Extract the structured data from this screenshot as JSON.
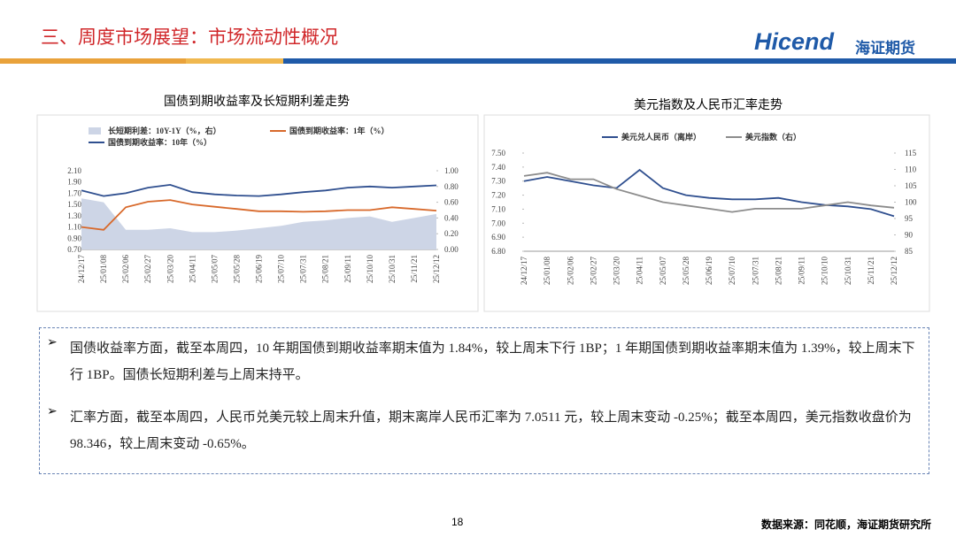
{
  "header": {
    "title": "三、周度市场展望：市场流动性概况",
    "logo": "Hicend",
    "logo_cn": "海证期货"
  },
  "chart_data": [
    {
      "type": "line",
      "title": "国债到期收益率及长短期利差走势",
      "x": [
        "24/12/17",
        "25/01/08",
        "25/02/06",
        "25/02/27",
        "25/03/20",
        "25/04/11",
        "25/05/07",
        "25/05/28",
        "25/06/19",
        "25/07/10",
        "25/07/31",
        "25/08/21",
        "25/09/11",
        "25/10/10",
        "25/10/31",
        "25/11/21",
        "25/12/12"
      ],
      "series": [
        {
          "name": "长短期利差：10Y-1Y（%，右）",
          "type": "area",
          "axis": "y2",
          "color": "#cdd5e6",
          "values": [
            0.65,
            0.6,
            0.25,
            0.25,
            0.27,
            0.22,
            0.22,
            0.24,
            0.27,
            0.3,
            0.35,
            0.37,
            0.4,
            0.42,
            0.35,
            0.4,
            0.45
          ]
        },
        {
          "name": "国债到期收益率：1年（%）",
          "color": "#d8692b",
          "values": [
            1.1,
            1.05,
            1.45,
            1.55,
            1.58,
            1.5,
            1.46,
            1.42,
            1.38,
            1.38,
            1.37,
            1.38,
            1.4,
            1.4,
            1.45,
            1.42,
            1.39
          ]
        },
        {
          "name": "国债到期收益率：10年（%）",
          "color": "#2f4f8f",
          "values": [
            1.75,
            1.65,
            1.7,
            1.8,
            1.85,
            1.72,
            1.68,
            1.66,
            1.65,
            1.68,
            1.72,
            1.75,
            1.8,
            1.82,
            1.8,
            1.82,
            1.84
          ]
        }
      ],
      "ylim": [
        0.7,
        2.1
      ],
      "yticks": [
        {
          "value": 0.7,
          "label": "0.70"
        },
        {
          "value": 0.9,
          "label": "0.90"
        },
        {
          "value": 1.1,
          "label": "1.10"
        },
        {
          "value": 1.3,
          "label": "1.30"
        },
        {
          "value": 1.5,
          "label": "1.50"
        },
        {
          "value": 1.7,
          "label": "1.70"
        },
        {
          "value": 1.9,
          "label": "1.90"
        },
        {
          "value": 2.1,
          "label": "2.10"
        }
      ],
      "y2lim": [
        0,
        1
      ],
      "y2ticks": [
        {
          "value": 0,
          "label": "0.00"
        },
        {
          "value": 0.2,
          "label": "0.20"
        },
        {
          "value": 0.4,
          "label": "0.40"
        },
        {
          "value": 0.6,
          "label": "0.60"
        },
        {
          "value": 0.8,
          "label": "0.80"
        },
        {
          "value": 1,
          "label": "1.00"
        }
      ]
    },
    {
      "type": "line",
      "title": "美元指数及人民币汇率走势",
      "x": [
        "24/12/17",
        "25/01/08",
        "25/02/06",
        "25/02/27",
        "25/03/20",
        "25/04/11",
        "25/05/07",
        "25/05/28",
        "25/06/19",
        "25/07/10",
        "25/07/31",
        "25/08/21",
        "25/09/11",
        "25/10/10",
        "25/10/31",
        "25/11/21",
        "25/12/12"
      ],
      "series": [
        {
          "name": "美元兑人民币（离岸）",
          "color": "#2f4f8f",
          "values": [
            7.3,
            7.33,
            7.3,
            7.27,
            7.25,
            7.38,
            7.25,
            7.2,
            7.18,
            7.17,
            7.17,
            7.18,
            7.15,
            7.13,
            7.12,
            7.1,
            7.05
          ]
        },
        {
          "name": "美元指数（右）",
          "axis": "y2",
          "color": "#8c8c8c",
          "values": [
            108,
            109,
            107,
            107,
            104,
            102,
            100,
            99,
            98,
            97,
            98,
            98,
            98,
            99,
            100,
            99,
            98.3
          ]
        }
      ],
      "ylim": [
        6.8,
        7.5
      ],
      "yticks": [
        {
          "value": 6.8,
          "label": "6.80"
        },
        {
          "value": 6.9,
          "label": "6.90"
        },
        {
          "value": 7,
          "label": "7.00"
        },
        {
          "value": 7.1,
          "label": "7.10"
        },
        {
          "value": 7.2,
          "label": "7.20"
        },
        {
          "value": 7.3,
          "label": "7.30"
        },
        {
          "value": 7.4,
          "label": "7.40"
        },
        {
          "value": 7.5,
          "label": "7.50"
        }
      ],
      "y2lim": [
        85,
        115
      ],
      "y2ticks": [
        85,
        90,
        95,
        100,
        105,
        110,
        115
      ]
    }
  ],
  "bullets": [
    "国债收益率方面，截至本周四，10 年期国债到期收益率期末值为 1.84%，较上周末下行 1BP；1 年期国债到期收益率期末值为 1.39%，较上周末下行 1BP。国债长短期利差与上周末持平。",
    "汇率方面，截至本周四，人民币兑美元较上周末升值，期末离岸人民币汇率为 7.0511 元，较上周末变动 -0.25%；截至本周四，美元指数收盘价为 98.346，较上周末变动 -0.65%。"
  ],
  "footer": {
    "page": "18",
    "source": "数据来源：同花顺，海证期货研究所"
  }
}
